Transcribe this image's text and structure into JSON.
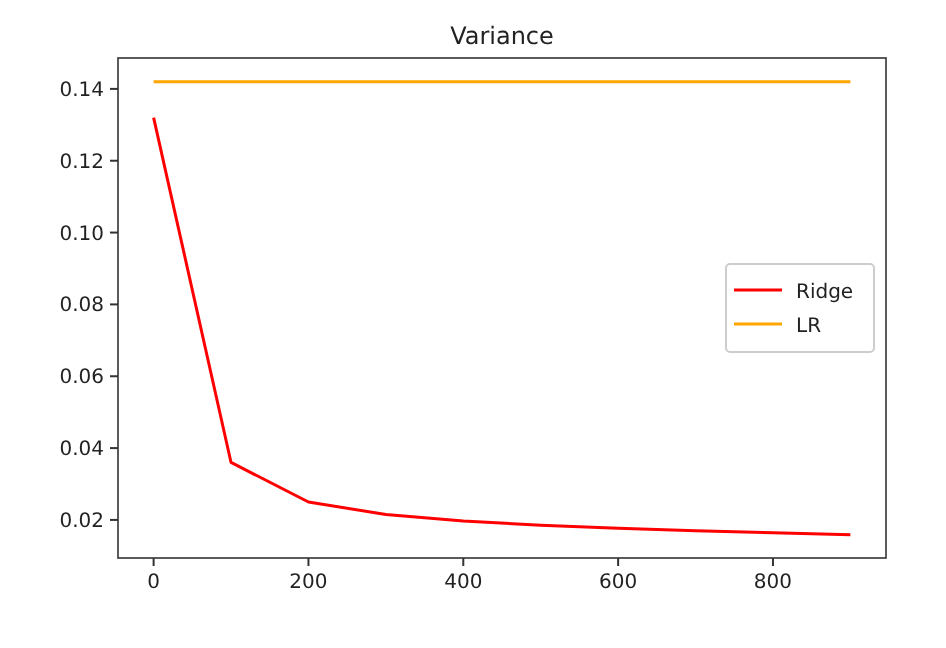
{
  "chart_data": {
    "type": "line",
    "title": "Variance",
    "x": [
      0,
      100,
      200,
      300,
      400,
      500,
      600,
      700,
      800,
      900
    ],
    "series": [
      {
        "name": "Ridge",
        "color": "#ff0000",
        "values": [
          0.132,
          0.036,
          0.025,
          0.0215,
          0.0197,
          0.0185,
          0.0177,
          0.017,
          0.0164,
          0.0159
        ]
      },
      {
        "name": "LR",
        "color": "#ffa500",
        "values": [
          0.142,
          0.142,
          0.142,
          0.142,
          0.142,
          0.142,
          0.142,
          0.142,
          0.142,
          0.142
        ]
      }
    ],
    "xlim": [
      -46,
      946
    ],
    "xticks": [
      0,
      200,
      400,
      600,
      800
    ],
    "ylim": [
      0.0094,
      0.1486
    ],
    "yticks": [
      {
        "value": 0.02,
        "label": "0.02"
      },
      {
        "value": 0.04,
        "label": "0.04"
      },
      {
        "value": 0.06,
        "label": "0.06"
      },
      {
        "value": 0.08,
        "label": "0.08"
      },
      {
        "value": 0.1,
        "label": "0.10"
      },
      {
        "value": 0.12,
        "label": "0.12"
      },
      {
        "value": 0.14,
        "label": "0.14"
      }
    ],
    "legend": "right",
    "grid": false
  }
}
